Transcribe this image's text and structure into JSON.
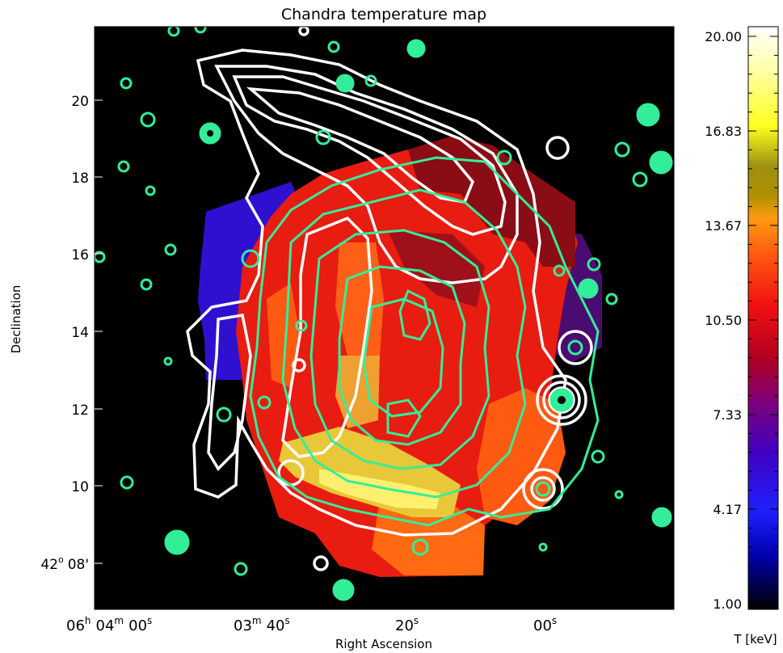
{
  "chart_data": {
    "type": "heatmap",
    "title": "Chandra temperature map",
    "xlabel": "Right Ascension",
    "ylabel": "Declination",
    "x_ticks": [
      {
        "h": "06",
        "m": "04",
        "s": "00"
      },
      {
        "m": "03",
        "s": "40"
      },
      {
        "s": "20"
      },
      {
        "s": "00"
      }
    ],
    "y_ticks": [
      "20",
      "18",
      "16",
      "14",
      "12",
      "10"
    ],
    "y_tick_deg": {
      "deg": "42",
      "min": "08'"
    },
    "colorbar": {
      "label": "T [keV]",
      "range": [
        1.0,
        20.0
      ],
      "ticks": [
        "20.00",
        "16.83",
        "13.67",
        "10.50",
        "7.33",
        "4.17",
        "1.00"
      ],
      "tick_values": [
        20.0,
        16.83,
        13.67,
        10.5,
        7.33,
        4.17,
        1.0
      ]
    },
    "contours": [
      {
        "color": "#ffffff"
      },
      {
        "color": "#33ee99"
      }
    ],
    "colors": {
      "background": "#000000",
      "cold_region": "#3010d0",
      "hot_main": "#e81c10",
      "warm": "#ff5a12",
      "hot_yellow": "#f8e040",
      "dark_red": "#8a0c14"
    }
  }
}
